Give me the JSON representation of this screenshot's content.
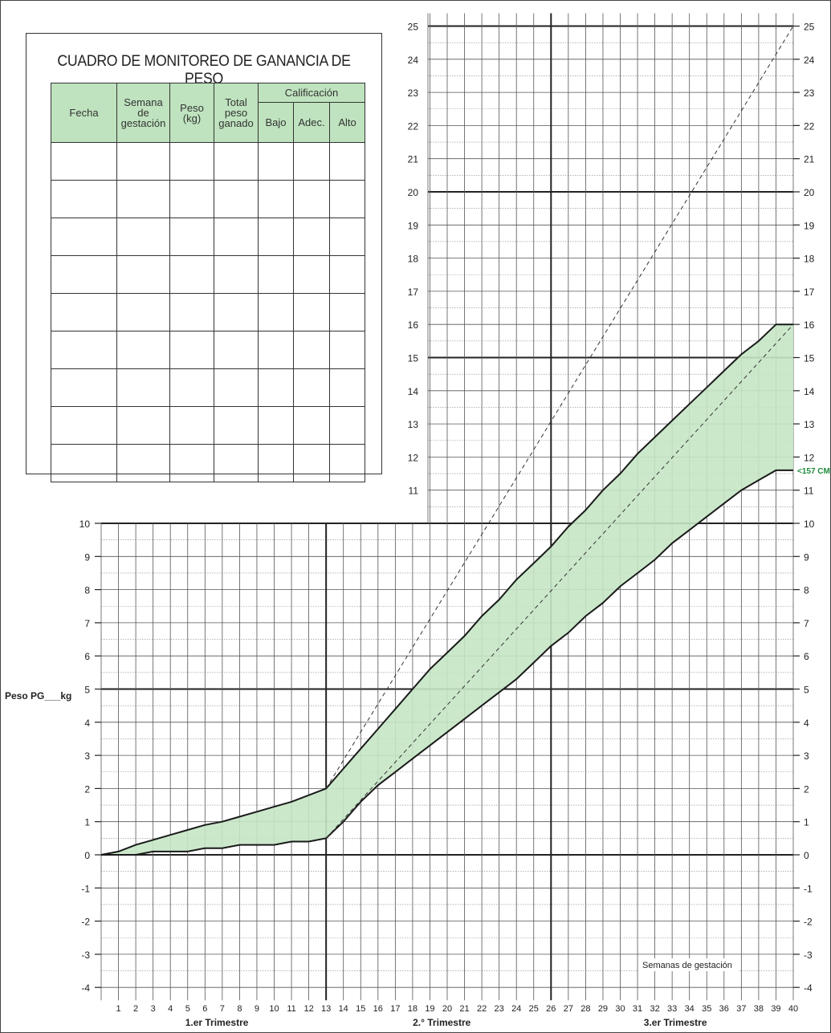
{
  "table": {
    "title": "CUADRO DE MONITOREO DE GANANCIA DE PESO",
    "headers": {
      "fecha": "Fecha",
      "semana": "Semana de gestación",
      "peso": "Peso (kg)",
      "total": "Total peso ganado",
      "calificacion": "Calificación",
      "bajo": "Bajo",
      "adec": "Adec.",
      "alto": "Alto"
    },
    "empty_rows": 9
  },
  "chart_data": {
    "type": "area",
    "ylabel": "Peso PG___kg",
    "xlabel": "Semanas de gestación",
    "x_range": [
      0,
      40
    ],
    "y_range_lower_panel": [
      -4,
      10
    ],
    "y_range_upper_panel": [
      10,
      25
    ],
    "upper_panel_x_start": 19,
    "grid": true,
    "trimesters": [
      {
        "label": "1.er Trimestre",
        "start": 0,
        "end": 13
      },
      {
        "label": "2.° Trimestre",
        "start": 13,
        "end": 26
      },
      {
        "label": "3.er Trimestre",
        "start": 26,
        "end": 40
      }
    ],
    "band_label": "<157 CM",
    "band_color": "#c5e6c5",
    "upper_line": {
      "x": [
        0,
        1,
        2,
        3,
        4,
        5,
        6,
        7,
        8,
        9,
        10,
        11,
        12,
        13,
        14,
        15,
        16,
        17,
        18,
        19,
        20,
        21,
        22,
        23,
        24,
        25,
        26,
        27,
        28,
        29,
        30,
        31,
        32,
        33,
        34,
        35,
        36,
        37,
        38,
        39,
        40
      ],
      "y": [
        0,
        0.1,
        0.3,
        0.45,
        0.6,
        0.75,
        0.9,
        1.0,
        1.15,
        1.3,
        1.45,
        1.6,
        1.8,
        2.0,
        2.6,
        3.2,
        3.8,
        4.4,
        5.0,
        5.6,
        6.1,
        6.6,
        7.2,
        7.7,
        8.3,
        8.8,
        9.3,
        9.9,
        10.4,
        11.0,
        11.5,
        12.1,
        12.6,
        13.1,
        13.6,
        14.1,
        14.6,
        15.1,
        15.5,
        16.0,
        16.0
      ]
    },
    "lower_line": {
      "x": [
        0,
        1,
        2,
        3,
        4,
        5,
        6,
        7,
        8,
        9,
        10,
        11,
        12,
        13,
        14,
        15,
        16,
        17,
        18,
        19,
        20,
        21,
        22,
        23,
        24,
        25,
        26,
        27,
        28,
        29,
        30,
        31,
        32,
        33,
        34,
        35,
        36,
        37,
        38,
        39,
        40
      ],
      "y": [
        0,
        0,
        0,
        0.1,
        0.1,
        0.1,
        0.2,
        0.2,
        0.3,
        0.3,
        0.3,
        0.4,
        0.4,
        0.5,
        1.0,
        1.6,
        2.1,
        2.5,
        2.9,
        3.3,
        3.7,
        4.1,
        4.5,
        4.9,
        5.3,
        5.8,
        6.3,
        6.7,
        7.2,
        7.6,
        8.1,
        8.5,
        8.9,
        9.4,
        9.8,
        10.2,
        10.6,
        11.0,
        11.3,
        11.6,
        11.6
      ]
    },
    "dashed_lines": [
      {
        "x": [
          13,
          40
        ],
        "y": [
          2,
          25
        ]
      },
      {
        "x": [
          13,
          40
        ],
        "y": [
          0.5,
          16
        ]
      }
    ]
  }
}
